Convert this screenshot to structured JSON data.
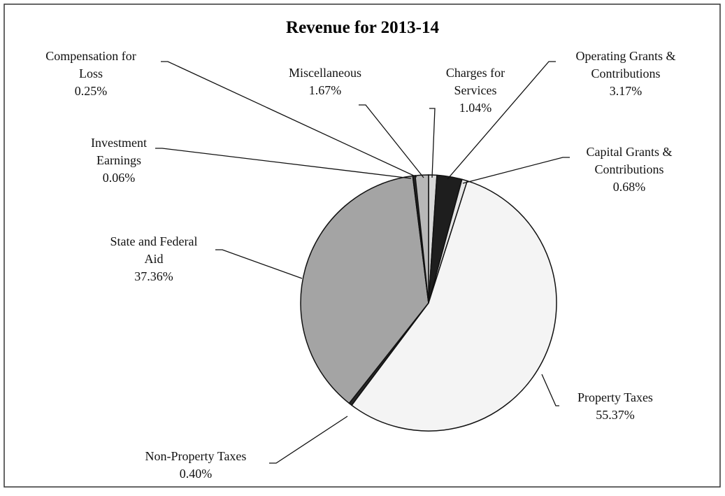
{
  "chart_data": {
    "type": "pie",
    "title": "Revenue for 2013-14",
    "categories": [
      "Charges for Services",
      "Operating Grants & Contributions",
      "Capital Grants & Contributions",
      "Property Taxes",
      "Non-Property Taxes",
      "State and Federal Aid",
      "Investment Earnings",
      "Compensation for Loss",
      "Miscellaneous"
    ],
    "values": [
      1.04,
      3.17,
      0.68,
      55.37,
      0.4,
      37.36,
      0.06,
      0.25,
      1.67
    ],
    "value_labels": [
      "1.04%",
      "3.17%",
      "0.68%",
      "55.37%",
      "0.40%",
      "37.36%",
      "0.06%",
      "0.25%",
      "1.67%"
    ],
    "colors": [
      "#d8d8d8",
      "#1e1e1e",
      "#e6e6e6",
      "#f4f4f4",
      "#262626",
      "#a4a4a4",
      "#1a1a1a",
      "#303030",
      "#b8b8b8"
    ]
  }
}
